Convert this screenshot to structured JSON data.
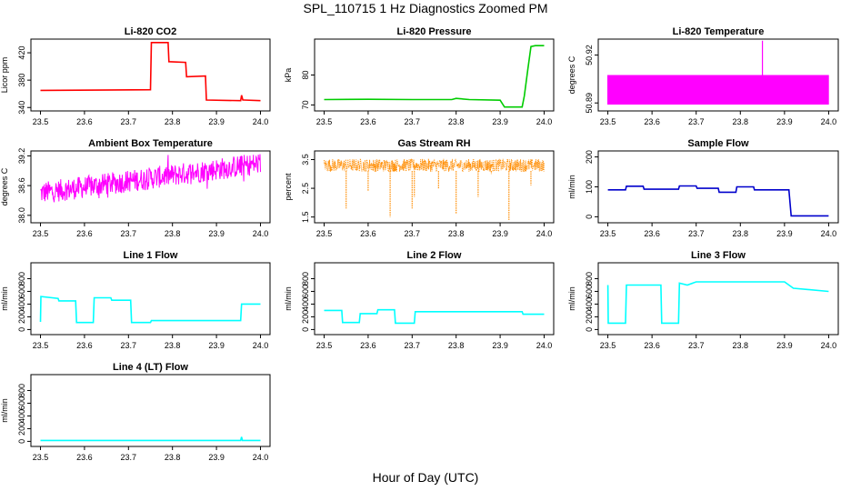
{
  "figure": {
    "title": "SPL_110715  1 Hz Diagnostics Zoomed PM",
    "xlabel": "Hour of Day (UTC)"
  },
  "chart_data": [
    {
      "type": "line",
      "title": "Li-820 CO2",
      "ylabel": "Licor ppm",
      "color": "#ff0000",
      "xlim": [
        23.5,
        24.0
      ],
      "ylim": [
        335,
        440
      ],
      "yticks": [
        340,
        380,
        420
      ],
      "yticklabels": [
        "340",
        "380",
        "420"
      ],
      "xticks": [
        23.5,
        23.6,
        23.7,
        23.8,
        23.9,
        24.0
      ],
      "xticklabels": [
        "23.5",
        "23.6",
        "23.7",
        "23.8",
        "23.9",
        "24.0"
      ],
      "series": [
        {
          "x": [
            23.5,
            23.75,
            23.752,
            23.79,
            23.792,
            23.83,
            23.832,
            23.875,
            23.877,
            23.955,
            23.957,
            23.96,
            23.962,
            24.0
          ],
          "y": [
            365,
            366,
            435,
            435,
            407,
            406,
            385,
            386,
            351,
            350,
            358,
            351,
            351,
            350
          ]
        }
      ]
    },
    {
      "type": "line",
      "title": "Li-820 Pressure",
      "ylabel": "kPa",
      "color": "#00cc00",
      "xlim": [
        23.5,
        24.0
      ],
      "ylim": [
        68,
        92
      ],
      "yticks": [
        70,
        80
      ],
      "yticklabels": [
        "70",
        "80"
      ],
      "xticks": [
        23.5,
        23.6,
        23.7,
        23.8,
        23.9,
        24.0
      ],
      "xticklabels": [
        "23.5",
        "23.6",
        "23.7",
        "23.8",
        "23.9",
        "24.0"
      ],
      "series": [
        {
          "x": [
            23.5,
            23.6,
            23.7,
            23.79,
            23.8,
            23.83,
            23.9,
            23.91,
            23.95,
            23.955,
            23.963,
            23.97,
            23.98,
            24.0
          ],
          "y": [
            71.8,
            71.9,
            71.8,
            71.8,
            72.2,
            71.8,
            71.6,
            69.3,
            69.3,
            73,
            82,
            89.5,
            89.8,
            89.8
          ]
        }
      ]
    },
    {
      "type": "line",
      "title": "Li-820 Temperature",
      "ylabel": "degrees C",
      "color": "#ff00ff",
      "xlim": [
        23.5,
        24.0
      ],
      "ylim": [
        50.885,
        50.93
      ],
      "yticks": [
        50.89,
        50.92
      ],
      "yticklabels": [
        "50.89",
        "50.92"
      ],
      "xticks": [
        23.5,
        23.6,
        23.7,
        23.8,
        23.9,
        24.0
      ],
      "xticklabels": [
        "23.5",
        "23.6",
        "23.7",
        "23.8",
        "23.9",
        "24.0"
      ],
      "series": [
        {
          "name": "",
          "x": [
            23.5,
            24.0
          ],
          "y": [
            50.889,
            50.9075
          ]
        }
      ],
      "notes_spike_at": 23.85
    },
    {
      "type": "line",
      "title": "Ambient Box Temperature",
      "ylabel": "degrees C",
      "color": "#ff00ff",
      "xlim": [
        23.5,
        24.0
      ],
      "ylim": [
        37.85,
        39.3
      ],
      "yticks": [
        38.0,
        38.6,
        39.2
      ],
      "yticklabels": [
        "38.0",
        "38.6",
        "39.2"
      ],
      "xticks": [
        23.5,
        23.6,
        23.7,
        23.8,
        23.9,
        24.0
      ],
      "xticklabels": [
        "23.5",
        "23.6",
        "23.7",
        "23.8",
        "23.9",
        "24.0"
      ],
      "series": [
        {
          "x": [
            23.5,
            23.6,
            23.7,
            23.8,
            23.9,
            24.0
          ],
          "y": [
            38.45,
            38.55,
            38.65,
            38.8,
            38.95,
            39.05
          ]
        }
      ]
    },
    {
      "type": "scatter",
      "title": "Gas Stream RH",
      "ylabel": "percent",
      "color": "#ff8c00",
      "xlim": [
        23.5,
        24.0
      ],
      "ylim": [
        1.3,
        3.8
      ],
      "yticks": [
        1.5,
        2.5,
        3.5
      ],
      "yticklabels": [
        "1.5",
        "2.5",
        "3.5"
      ],
      "xticks": [
        23.5,
        23.6,
        23.7,
        23.8,
        23.9,
        24.0
      ],
      "xticklabels": [
        "23.5",
        "23.6",
        "23.7",
        "23.8",
        "23.9",
        "24.0"
      ],
      "series": [
        {
          "x": [
            23.5,
            24.0
          ],
          "y": [
            3.3,
            3.3
          ]
        }
      ],
      "dips": [
        [
          23.55,
          1.8
        ],
        [
          23.6,
          2.4
        ],
        [
          23.65,
          1.5
        ],
        [
          23.7,
          1.8
        ],
        [
          23.705,
          2.2
        ],
        [
          23.76,
          2.5
        ],
        [
          23.8,
          1.6
        ],
        [
          23.85,
          2.2
        ],
        [
          23.88,
          3.0
        ],
        [
          23.92,
          1.4
        ],
        [
          23.97,
          2.6
        ]
      ]
    },
    {
      "type": "line",
      "title": "Sample Flow",
      "ylabel": "ml/min",
      "color": "#0000cc",
      "xlim": [
        23.5,
        24.0
      ],
      "ylim": [
        -20,
        220
      ],
      "yticks": [
        0,
        100,
        200
      ],
      "yticklabels": [
        "0",
        "100",
        "200"
      ],
      "xticks": [
        23.5,
        23.6,
        23.7,
        23.8,
        23.9,
        24.0
      ],
      "xticklabels": [
        "23.5",
        "23.6",
        "23.7",
        "23.8",
        "23.9",
        "24.0"
      ],
      "series": [
        {
          "x": [
            23.5,
            23.54,
            23.542,
            23.58,
            23.582,
            23.66,
            23.662,
            23.7,
            23.702,
            23.75,
            23.752,
            23.79,
            23.792,
            23.83,
            23.832,
            23.91,
            23.915,
            24.0
          ],
          "y": [
            90,
            90,
            102,
            102,
            92,
            92,
            103,
            103,
            95,
            95,
            82,
            82,
            100,
            100,
            90,
            90,
            3,
            3
          ]
        }
      ]
    },
    {
      "type": "line",
      "title": "Line 1 Flow",
      "ylabel": "ml/min",
      "color": "#00ffff",
      "xlim": [
        23.5,
        24.0
      ],
      "ylim": [
        -80,
        1050
      ],
      "yticks": [
        0,
        200,
        400,
        600,
        800
      ],
      "yticklabels": [
        "0",
        "200",
        "400",
        "600",
        "800"
      ],
      "xticks": [
        23.5,
        23.6,
        23.7,
        23.8,
        23.9,
        24.0
      ],
      "xticklabels": [
        "23.5",
        "23.6",
        "23.7",
        "23.8",
        "23.9",
        "24.0"
      ],
      "series": [
        {
          "x": [
            23.5,
            23.501,
            23.54,
            23.542,
            23.58,
            23.582,
            23.62,
            23.622,
            23.66,
            23.662,
            23.705,
            23.707,
            23.75,
            23.752,
            23.955,
            23.957,
            24.0
          ],
          "y": [
            120,
            520,
            490,
            450,
            450,
            110,
            110,
            500,
            500,
            460,
            460,
            110,
            110,
            140,
            140,
            400,
            400
          ]
        }
      ]
    },
    {
      "type": "line",
      "title": "Line 2 Flow",
      "ylabel": "ml/min",
      "color": "#00ffff",
      "xlim": [
        23.5,
        24.0
      ],
      "ylim": [
        -80,
        1050
      ],
      "yticks": [
        0,
        200,
        400,
        600,
        800
      ],
      "yticklabels": [
        "0",
        "200",
        "400",
        "600",
        "800"
      ],
      "xticks": [
        23.5,
        23.6,
        23.7,
        23.8,
        23.9,
        24.0
      ],
      "xticklabels": [
        "23.5",
        "23.6",
        "23.7",
        "23.8",
        "23.9",
        "24.0"
      ],
      "series": [
        {
          "x": [
            23.5,
            23.54,
            23.542,
            23.58,
            23.582,
            23.62,
            23.622,
            23.66,
            23.662,
            23.705,
            23.707,
            23.95,
            23.952,
            24.0
          ],
          "y": [
            300,
            300,
            110,
            110,
            250,
            250,
            310,
            310,
            100,
            100,
            280,
            280,
            240,
            240
          ]
        }
      ]
    },
    {
      "type": "line",
      "title": "Line 3 Flow",
      "ylabel": "ml/min",
      "color": "#00ffff",
      "xlim": [
        23.5,
        24.0
      ],
      "ylim": [
        -80,
        1050
      ],
      "yticks": [
        0,
        200,
        400,
        600,
        800
      ],
      "yticklabels": [
        "0",
        "200",
        "400",
        "600",
        "800"
      ],
      "xticks": [
        23.5,
        23.6,
        23.7,
        23.8,
        23.9,
        24.0
      ],
      "xticklabels": [
        "23.5",
        "23.6",
        "23.7",
        "23.8",
        "23.9",
        "24.0"
      ],
      "series": [
        {
          "x": [
            23.5,
            23.501,
            23.503,
            23.54,
            23.542,
            23.62,
            23.622,
            23.66,
            23.662,
            23.68,
            23.7,
            23.9,
            23.92,
            24.0
          ],
          "y": [
            700,
            100,
            100,
            100,
            700,
            700,
            100,
            100,
            730,
            700,
            750,
            750,
            650,
            600
          ]
        }
      ]
    },
    {
      "type": "line",
      "title": "Line 4 (LT) Flow",
      "ylabel": "ml/min",
      "color": "#00ffff",
      "xlim": [
        23.5,
        24.0
      ],
      "ylim": [
        -80,
        1050
      ],
      "yticks": [
        0,
        200,
        400,
        600,
        800
      ],
      "yticklabels": [
        "0",
        "200",
        "400",
        "600",
        "800"
      ],
      "xticks": [
        23.5,
        23.6,
        23.7,
        23.8,
        23.9,
        24.0
      ],
      "xticklabels": [
        "23.5",
        "23.6",
        "23.7",
        "23.8",
        "23.9",
        "24.0"
      ],
      "series": [
        {
          "x": [
            23.5,
            23.955,
            23.957,
            23.959,
            24.0
          ],
          "y": [
            15,
            15,
            70,
            15,
            15
          ]
        }
      ]
    }
  ]
}
